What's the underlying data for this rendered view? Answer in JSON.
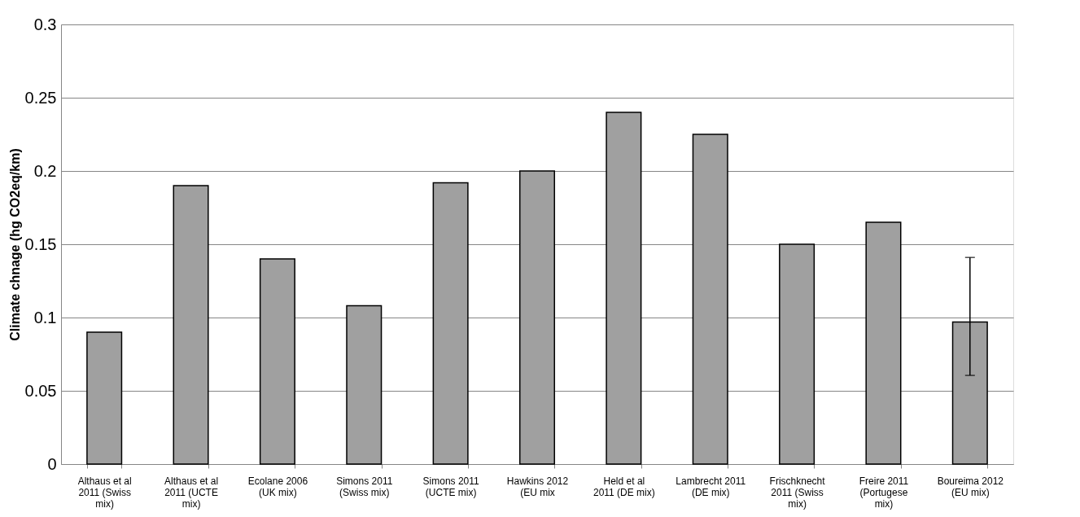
{
  "chart_data": {
    "type": "bar",
    "ylabel": "Climate chnage (hg CO2eq/km)",
    "categories": [
      "Althaus et al 2011 (Swiss mix)",
      "Althaus et al 2011 (UCTE mix)",
      "Ecolane 2006 (UK mix)",
      "Simons 2011 (Swiss mix)",
      "Simons 2011 (UCTE mix)",
      "Hawkins 2012 (EU mix",
      "Held et al 2011 (DE mix)",
      "Lambrecht 2011 (DE mix)",
      "Frischknecht 2011 (Swiss mix)",
      "Freire 2011 (Portugese mix)",
      "Boureima 2012 (EU mix)"
    ],
    "values": [
      0.09,
      0.19,
      0.14,
      0.108,
      0.192,
      0.2,
      0.24,
      0.225,
      0.15,
      0.165,
      0.097
    ],
    "errors": [
      null,
      null,
      null,
      null,
      null,
      null,
      null,
      null,
      null,
      null,
      [
        0.0605,
        0.141
      ]
    ],
    "color": "#a0a0a0",
    "ylim": [
      0,
      0.3
    ],
    "yticks": [
      0,
      0.05,
      0.1,
      0.15,
      0.2,
      0.25,
      0.3
    ],
    "grid": "y"
  }
}
